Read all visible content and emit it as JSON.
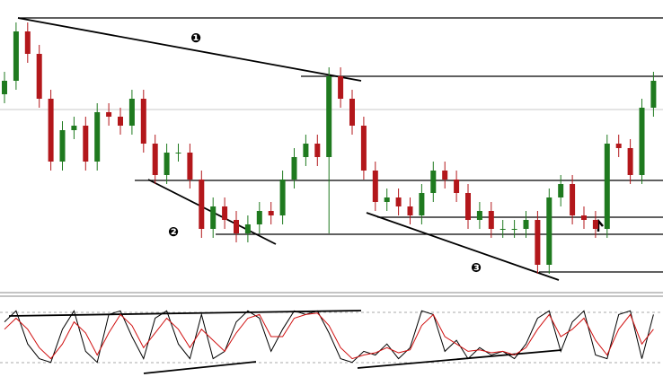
{
  "chart_data": {
    "type": "candlestick",
    "labels": [
      "❶",
      "❷",
      "❸"
    ],
    "ylim": [
      0,
      325
    ],
    "up_color": "#1f7a1f",
    "down_color": "#b3171b",
    "open": [
      220,
      235,
      290,
      265,
      215,
      145,
      180,
      185,
      145,
      200,
      195,
      185,
      215,
      165,
      130,
      155,
      155,
      125,
      70,
      95,
      80,
      65,
      75,
      90,
      85,
      125,
      150,
      165,
      150,
      240,
      215,
      185,
      135,
      100,
      105,
      95,
      85,
      110,
      135,
      125,
      110,
      80,
      90,
      70,
      70,
      70,
      80,
      30,
      105,
      120,
      85,
      80,
      70,
      165,
      160,
      130,
      205
    ],
    "high": [
      245,
      300,
      300,
      275,
      225,
      190,
      195,
      195,
      210,
      210,
      205,
      225,
      225,
      175,
      165,
      165,
      165,
      135,
      105,
      105,
      90,
      85,
      100,
      100,
      135,
      160,
      175,
      175,
      250,
      250,
      225,
      195,
      145,
      115,
      115,
      105,
      120,
      145,
      145,
      135,
      120,
      100,
      100,
      80,
      80,
      90,
      90,
      115,
      130,
      130,
      95,
      90,
      175,
      175,
      170,
      215,
      245
    ],
    "low": [
      210,
      225,
      255,
      205,
      135,
      135,
      170,
      135,
      135,
      185,
      175,
      175,
      155,
      120,
      120,
      145,
      115,
      60,
      60,
      70,
      55,
      55,
      65,
      75,
      75,
      115,
      140,
      140,
      65,
      205,
      175,
      125,
      90,
      90,
      85,
      75,
      75,
      100,
      115,
      100,
      70,
      70,
      60,
      60,
      60,
      60,
      20,
      20,
      95,
      75,
      70,
      60,
      60,
      150,
      120,
      120,
      195
    ],
    "close": [
      235,
      290,
      265,
      215,
      145,
      180,
      185,
      145,
      200,
      195,
      185,
      215,
      165,
      130,
      155,
      155,
      125,
      70,
      95,
      80,
      65,
      75,
      90,
      85,
      125,
      150,
      165,
      150,
      240,
      215,
      185,
      135,
      100,
      105,
      95,
      85,
      110,
      135,
      125,
      110,
      80,
      90,
      70,
      70,
      70,
      80,
      30,
      105,
      120,
      85,
      80,
      70,
      165,
      160,
      130,
      205,
      235
    ],
    "oscillator": {
      "ylim": [
        0,
        100
      ],
      "series": [
        {
          "color": "#000000",
          "values": [
            70,
            85,
            40,
            20,
            15,
            60,
            85,
            30,
            15,
            80,
            85,
            50,
            20,
            75,
            85,
            40,
            20,
            80,
            20,
            30,
            70,
            85,
            75,
            30,
            60,
            85,
            80,
            85,
            55,
            20,
            15,
            30,
            25,
            40,
            20,
            35,
            85,
            80,
            30,
            45,
            20,
            35,
            25,
            30,
            20,
            40,
            75,
            85,
            30,
            70,
            85,
            25,
            20,
            80,
            85,
            20,
            80
          ]
        },
        {
          "color": "#d01010",
          "values": [
            60,
            75,
            60,
            35,
            20,
            40,
            70,
            55,
            25,
            55,
            80,
            65,
            35,
            55,
            75,
            60,
            35,
            60,
            45,
            30,
            55,
            75,
            80,
            50,
            50,
            75,
            80,
            82,
            65,
            35,
            20,
            25,
            28,
            35,
            28,
            32,
            65,
            80,
            50,
            40,
            30,
            32,
            28,
            30,
            25,
            35,
            60,
            80,
            50,
            60,
            75,
            45,
            25,
            60,
            80,
            40,
            60
          ]
        }
      ]
    }
  }
}
